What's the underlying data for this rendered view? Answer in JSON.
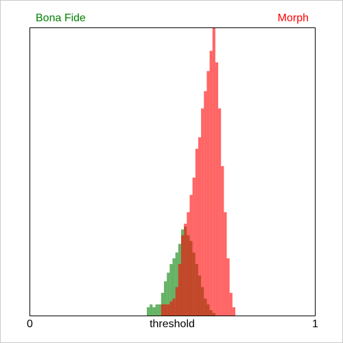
{
  "chart_data": {
    "type": "histogram",
    "xlabel": "threshold",
    "bins": [
      0.4,
      0.41,
      0.42,
      0.43,
      0.44,
      0.45,
      0.46,
      0.47,
      0.48,
      0.49,
      0.5,
      0.51,
      0.52,
      0.53,
      0.54,
      0.55,
      0.56,
      0.57,
      0.58,
      0.59,
      0.6,
      0.61,
      0.62,
      0.63,
      0.64,
      0.65,
      0.66,
      0.67,
      0.68,
      0.69,
      0.7,
      0.71,
      0.72
    ],
    "series": [
      {
        "name": "Bona Fide",
        "color": "#008000",
        "values": [
          0,
          3,
          4,
          3,
          4,
          4,
          8,
          12,
          15,
          18,
          20,
          22,
          25,
          30,
          31,
          28,
          26,
          22,
          18,
          14,
          10,
          6,
          4,
          2,
          1,
          0,
          0,
          0,
          0,
          0,
          0,
          0
        ]
      },
      {
        "name": "Morph",
        "color": "#ff0000",
        "values": [
          0,
          0,
          0,
          0,
          0,
          0,
          4,
          4,
          4,
          5,
          6,
          10,
          18,
          28,
          32,
          36,
          42,
          48,
          58,
          62,
          72,
          78,
          85,
          92,
          100,
          88,
          72,
          52,
          36,
          20,
          8,
          3
        ]
      }
    ],
    "xlim": [
      0,
      1
    ],
    "xticks": [
      0,
      1
    ],
    "ylim": [
      0,
      100
    ]
  }
}
